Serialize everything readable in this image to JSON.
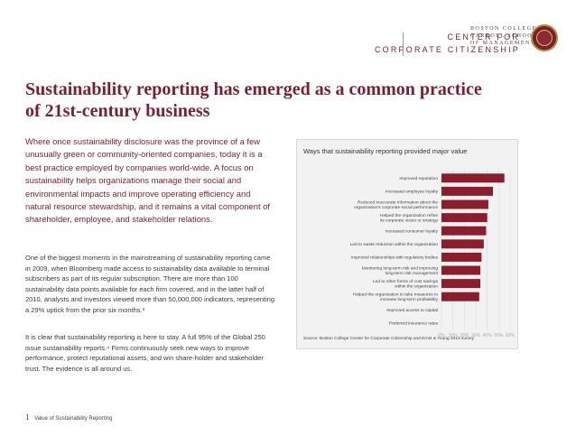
{
  "header": {
    "school_lines": [
      "BOSTON COLLEGE",
      "CARROLL SCHOOL",
      "OF MANAGEMENT"
    ],
    "center_line1": "CENTER FOR",
    "center_line2": "CORPORATE CITIZENSHIP",
    "crest_icon": "boston-college-seal",
    "accent_color": "#7a1f2b"
  },
  "title": "Sustainability reporting has emerged as a common practice of 21st-century business",
  "intro": "Where once sustainability disclosure was the province of a few unusually green or community-oriented companies, today it is a best practice employed by companies world-wide. A focus on sustainability helps organizations manage their social and environmental impacts and improve operating efficiency and natural resource stewardship, and it remains a vital component of shareholder, employee, and stakeholder relations.",
  "paragraph1": "One of the biggest moments in the mainstreaming of sustainability reporting came in 2009, when Bloomberg made access to sustainability data available to terminal subscribers as part of its regular subscription. There are more than 100 sustainability data points available for each firm covered, and in the latter half of 2010, analysts and investors viewed more than 50,000,000 indicators, representing a 29% uptick from the prior six months.³",
  "paragraph2": "It is clear that sustainability reporting is here to stay. A full 95% of the Global 250 issue sustainability reports.⁴ Firms continuously seek new ways to improve performance, protect reputational assets, and win share-holder and stakeholder trust. The evidence is all around us.",
  "chart_data": {
    "type": "bar",
    "orientation": "horizontal",
    "title": "Ways that sustainability reporting provided major value",
    "categories": [
      "Improved reputation",
      "Increased employee loyalty",
      "Reduced inaccurate information about the organization's corporate social performance",
      "Helped the organization refine its corporate vision or strategy",
      "Increased consumer loyalty",
      "Led to waste reduction within the organization",
      "Improved relationships with regulatory bodies",
      "Monitoring long-term risk and improving long-term risk management",
      "Led to other forms of cost savings within the organization",
      "Helped the organization to take measures to increase long-term profitability",
      "Improved access to capital",
      "Preferred insurance rates"
    ],
    "category_lines": [
      [
        "Improved reputation"
      ],
      [
        "Increased employee loyalty"
      ],
      [
        "Reduced inaccurate information about the",
        "organization's corporate social performance"
      ],
      [
        "Helped the organization refine",
        "its corporate vision or strategy"
      ],
      [
        "Increased consumer loyalty"
      ],
      [
        "Led to waste reduction within the organization"
      ],
      [
        "Improved relationships with regulatory bodies"
      ],
      [
        "Monitoring long-term risk and improving",
        "long-term risk management"
      ],
      [
        "Led to other forms of cost savings",
        "within the organization"
      ],
      [
        "Helped the organization to take measures to",
        "increase long-term profitability"
      ],
      [
        "Improved access to capital"
      ],
      [
        "Preferred insurance rates"
      ]
    ],
    "values": [
      55,
      45,
      41,
      40,
      39,
      37,
      35,
      34,
      34,
      33,
      0,
      0
    ],
    "xlim": [
      0,
      60
    ],
    "ticks": [
      "0%",
      "10%",
      "20%",
      "30%",
      "40%",
      "50%",
      "60%"
    ],
    "tick_values": [
      0,
      10,
      20,
      30,
      40,
      50,
      60
    ],
    "bar_color": "#8c1d2c",
    "source": "Source: Boston College Center for Corporate Citizenship and Ernst & Young 2013 survey"
  },
  "footer": {
    "page_number": "1",
    "label": "Value of Sustainability Reporting"
  }
}
